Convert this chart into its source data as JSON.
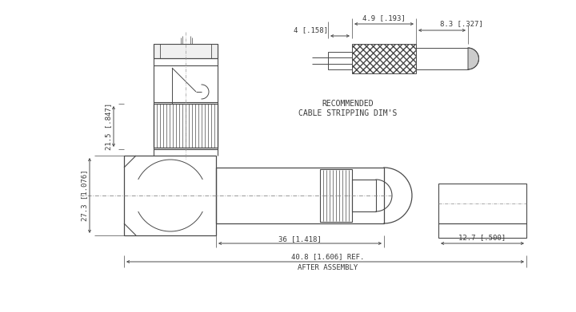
{
  "bg_color": "#ffffff",
  "line_color": "#4a4a4a",
  "hatch_color": "#4a4a4a",
  "dim_color": "#4a4a4a",
  "text_color": "#3a3a3a",
  "font_size": 6.5,
  "fig_width": 7.2,
  "fig_height": 3.91,
  "annotations": {
    "dim_21_5": "21.5 [.847]",
    "dim_27_3": "27.3 [1.076]",
    "dim_36": "36 [1.418]",
    "dim_40_8": "40.8 [1.606] REF.",
    "after_assembly": "AFTER ASSEMBLY",
    "dim_4": "4 [.158]",
    "dim_4_9": "4.9 [.193]",
    "dim_8_3": "8.3 [.327]",
    "dim_12_7": "12.7 [.500]",
    "rec_label1": "RECOMMENDED",
    "rec_label2": "CABLE STRIPPING DIM'S"
  }
}
